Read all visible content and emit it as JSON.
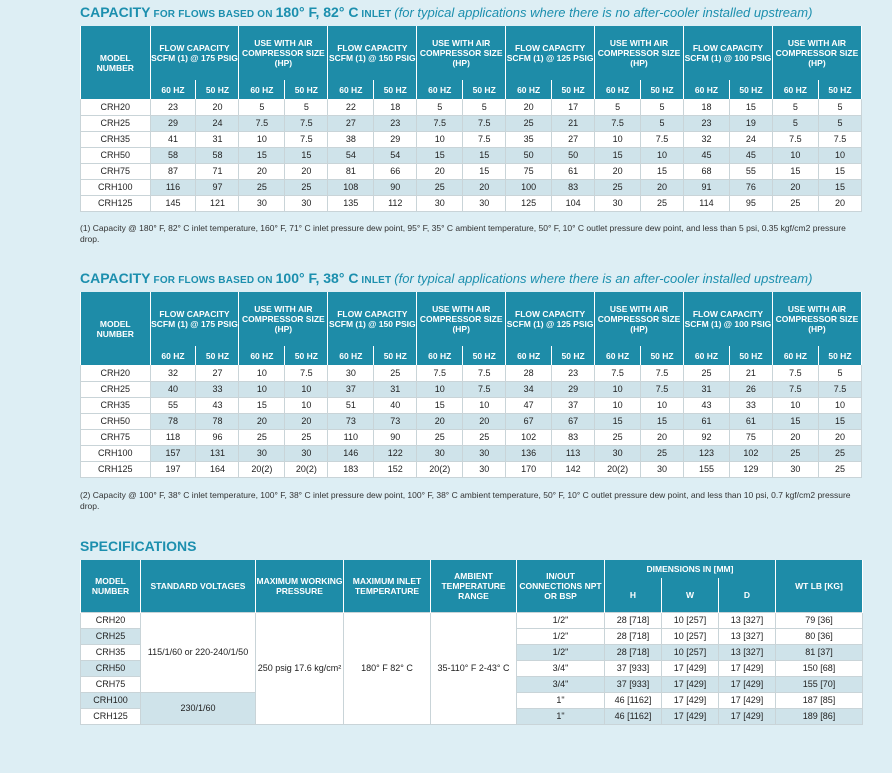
{
  "section1": {
    "title_main": "CAPACITY",
    "title_small": " FOR FLOWS BASED ON ",
    "title_cond": "180° F, 82° C",
    "title_small2": " INLET ",
    "title_italic": "(for typical applications where there is no after-cooler installed upstream)",
    "headers": {
      "model": "MODEL NUMBER",
      "groups": [
        "FLOW CAPACITY SCFM (1) @ 175 PSIG",
        "USE WITH AIR COMPRESSOR SIZE (HP)",
        "FLOW CAPACITY SCFM (1) @ 150 PSIG",
        "USE WITH AIR COMPRESSOR SIZE (HP)",
        "FLOW CAPACITY SCFM (1) @ 125 PSIG",
        "USE WITH AIR COMPRESSOR SIZE (HP)",
        "FLOW CAPACITY SCFM (1) @ 100 PSIG",
        "USE WITH AIR COMPRESSOR SIZE (HP)"
      ],
      "hz60": "60 HZ",
      "hz50": "50 HZ"
    },
    "rows": [
      {
        "model": "CRH20",
        "v": [
          "23",
          "20",
          "5",
          "5",
          "22",
          "18",
          "5",
          "5",
          "20",
          "17",
          "5",
          "5",
          "18",
          "15",
          "5",
          "5"
        ]
      },
      {
        "model": "CRH25",
        "v": [
          "29",
          "24",
          "7.5",
          "7.5",
          "27",
          "23",
          "7.5",
          "7.5",
          "25",
          "21",
          "7.5",
          "5",
          "23",
          "19",
          "5",
          "5"
        ]
      },
      {
        "model": "CRH35",
        "v": [
          "41",
          "31",
          "10",
          "7.5",
          "38",
          "29",
          "10",
          "7.5",
          "35",
          "27",
          "10",
          "7.5",
          "32",
          "24",
          "7.5",
          "7.5"
        ]
      },
      {
        "model": "CRH50",
        "v": [
          "58",
          "58",
          "15",
          "15",
          "54",
          "54",
          "15",
          "15",
          "50",
          "50",
          "15",
          "10",
          "45",
          "45",
          "10",
          "10"
        ]
      },
      {
        "model": "CRH75",
        "v": [
          "87",
          "71",
          "20",
          "20",
          "81",
          "66",
          "20",
          "15",
          "75",
          "61",
          "20",
          "15",
          "68",
          "55",
          "15",
          "15"
        ]
      },
      {
        "model": "CRH100",
        "v": [
          "116",
          "97",
          "25",
          "25",
          "108",
          "90",
          "25",
          "20",
          "100",
          "83",
          "25",
          "20",
          "91",
          "76",
          "20",
          "15"
        ]
      },
      {
        "model": "CRH125",
        "v": [
          "145",
          "121",
          "30",
          "30",
          "135",
          "112",
          "30",
          "30",
          "125",
          "104",
          "30",
          "25",
          "114",
          "95",
          "25",
          "20"
        ]
      }
    ],
    "note": "(1) Capacity @ 180° F, 82° C inlet temperature, 160° F, 71° C inlet pressure dew point, 95° F, 35° C ambient temperature, 50° F, 10° C outlet pressure dew point, and less than 5 psi, 0.35 kgf/cm2 pressure drop."
  },
  "section2": {
    "title_main": "CAPACITY",
    "title_small": " FOR FLOWS BASED ON ",
    "title_cond": "100° F, 38° C",
    "title_small2": " INLET ",
    "title_italic": "(for typical applications where there is an after-cooler installed upstream)",
    "rows": [
      {
        "model": "CRH20",
        "v": [
          "32",
          "27",
          "10",
          "7.5",
          "30",
          "25",
          "7.5",
          "7.5",
          "28",
          "23",
          "7.5",
          "7.5",
          "25",
          "21",
          "7.5",
          "5"
        ]
      },
      {
        "model": "CRH25",
        "v": [
          "40",
          "33",
          "10",
          "10",
          "37",
          "31",
          "10",
          "7.5",
          "34",
          "29",
          "10",
          "7.5",
          "31",
          "26",
          "7.5",
          "7.5"
        ]
      },
      {
        "model": "CRH35",
        "v": [
          "55",
          "43",
          "15",
          "10",
          "51",
          "40",
          "15",
          "10",
          "47",
          "37",
          "10",
          "10",
          "43",
          "33",
          "10",
          "10"
        ]
      },
      {
        "model": "CRH50",
        "v": [
          "78",
          "78",
          "20",
          "20",
          "73",
          "73",
          "20",
          "20",
          "67",
          "67",
          "15",
          "15",
          "61",
          "61",
          "15",
          "15"
        ]
      },
      {
        "model": "CRH75",
        "v": [
          "118",
          "96",
          "25",
          "25",
          "110",
          "90",
          "25",
          "25",
          "102",
          "83",
          "25",
          "20",
          "92",
          "75",
          "20",
          "20"
        ]
      },
      {
        "model": "CRH100",
        "v": [
          "157",
          "131",
          "30",
          "30",
          "146",
          "122",
          "30",
          "30",
          "136",
          "113",
          "30",
          "25",
          "123",
          "102",
          "25",
          "25"
        ]
      },
      {
        "model": "CRH125",
        "v": [
          "197",
          "164",
          "20(2)",
          "20(2)",
          "183",
          "152",
          "20(2)",
          "30",
          "170",
          "142",
          "20(2)",
          "30",
          "155",
          "129",
          "30",
          "25"
        ]
      }
    ],
    "note": "(2) Capacity @ 100° F, 38° C inlet temperature, 100° F, 38° C inlet pressure dew point, 100° F, 38° C ambient temperature, 50° F, 10° C outlet pressure dew point, and less than 10 psi, 0.7 kgf/cm2 pressure drop."
  },
  "specs": {
    "title": "SPECIFICATIONS",
    "headers": {
      "model": "MODEL NUMBER",
      "voltages": "STANDARD VOLTAGES",
      "pressure": "MAXIMUM WORKING PRESSURE",
      "inlet_temp": "MAXIMUM INLET TEMPERATURE",
      "ambient": "AMBIENT TEMPERATURE RANGE",
      "connections": "IN/OUT CONNECTIONS NPT OR BSP",
      "dimensions": "DIMENSIONS IN [MM]",
      "h": "H",
      "w": "W",
      "d": "D",
      "weight": "WT LB [KG]"
    },
    "volt_group1": "115/1/60 or 220-240/1/50",
    "volt_group2": "230/1/60",
    "pressure": "250 psig 17.6 kg/cm²",
    "inlet_temp": "180° F 82° C",
    "ambient": "35-110° F 2-43° C",
    "rows": [
      {
        "model": "CRH20",
        "conn": "1/2\"",
        "h": "28 [718]",
        "w": "10 [257]",
        "d": "13 [327]",
        "wt": "79 [36]"
      },
      {
        "model": "CRH25",
        "conn": "1/2\"",
        "h": "28 [718]",
        "w": "10 [257]",
        "d": "13 [327]",
        "wt": "80 [36]"
      },
      {
        "model": "CRH35",
        "conn": "1/2\"",
        "h": "28 [718]",
        "w": "10 [257]",
        "d": "13 [327]",
        "wt": "81 [37]"
      },
      {
        "model": "CRH50",
        "conn": "3/4\"",
        "h": "37 [933]",
        "w": "17 [429]",
        "d": "17 [429]",
        "wt": "150 [68]"
      },
      {
        "model": "CRH75",
        "conn": "3/4\"",
        "h": "37 [933]",
        "w": "17 [429]",
        "d": "17 [429]",
        "wt": "155 [70]"
      },
      {
        "model": "CRH100",
        "conn": "1\"",
        "h": "46 [1162]",
        "w": "17 [429]",
        "d": "17 [429]",
        "wt": "187 [85]"
      },
      {
        "model": "CRH125",
        "conn": "1\"",
        "h": "46 [1162]",
        "w": "17 [429]",
        "d": "17 [429]",
        "wt": "189 [86]"
      }
    ]
  }
}
